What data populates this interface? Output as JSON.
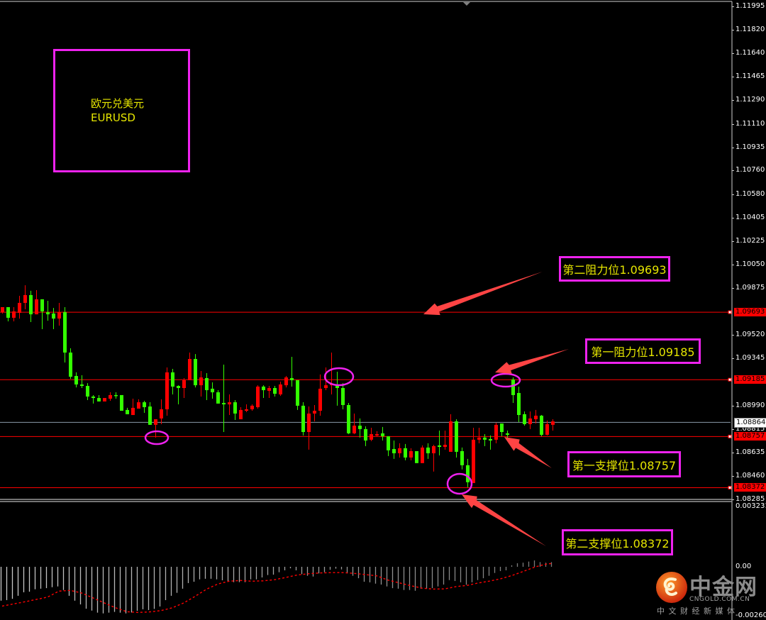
{
  "symbol_box": {
    "name_cn": "欧元兑美元",
    "name_en": "EURUSD"
  },
  "levels": [
    {
      "label": "第二阻力位1.09693",
      "price": 1.09693,
      "kind": "resistance-2"
    },
    {
      "label": "第一阻力位1.09185",
      "price": 1.09185,
      "kind": "resistance-1"
    },
    {
      "label": "第一支撑位1.08757",
      "price": 1.08757,
      "kind": "support-1"
    },
    {
      "label": "第二支撑位1.08372",
      "price": 1.08372,
      "kind": "support-2"
    }
  ],
  "price_axis": {
    "ticks": [
      "1.11995",
      "1.11820",
      "1.11640",
      "1.11465",
      "1.11290",
      "1.11110",
      "1.10935",
      "1.10760",
      "1.10580",
      "1.10405",
      "1.10225",
      "1.10050",
      "1.09875",
      "1.09520",
      "1.09345",
      "1.08990",
      "1.08815",
      "1.08635",
      "1.08460",
      "1.08285"
    ],
    "level_labels": [
      "1.09693",
      "1.09185",
      "1.08757",
      "1.08372"
    ],
    "current_price": "1.08864"
  },
  "macd_axis": {
    "max": "0.003231",
    "zero": "0.00",
    "min": "-0.002609"
  },
  "logo": {
    "name": "中金网",
    "domain": "CNGOLD.COM.CN",
    "tagline": "中 文 财 经 新 媒 体"
  },
  "colors": {
    "up": "#ff0000",
    "down": "#33ff00",
    "level_line": "#ff0000",
    "current_price_line": "#8a9aa8",
    "annotation": "#ee22ee",
    "annotation_text": "#e6e600",
    "arrow": "#ff4444",
    "macd_hist": "#b0b0b0",
    "macd_signal": "#ff0000"
  },
  "chart_data": {
    "type": "candlestick",
    "symbol": "EURUSD",
    "ylim": [
      1.08285,
      1.11995
    ],
    "up_color": "red",
    "down_color": "green",
    "ohlc": [
      [
        1.09693,
        1.09731,
        1.09683,
        1.09731
      ],
      [
        1.09731,
        1.09731,
        1.09624,
        1.09651
      ],
      [
        1.09651,
        1.09731,
        1.09624,
        1.09699
      ],
      [
        1.09688,
        1.09816,
        1.09645,
        1.09763
      ],
      [
        1.09763,
        1.09896,
        1.09715,
        1.09822
      ],
      [
        1.09822,
        1.09854,
        1.09619,
        1.09677
      ],
      [
        1.09677,
        1.09859,
        1.09677,
        1.0979
      ],
      [
        1.0979,
        1.0979,
        1.09565,
        1.09699
      ],
      [
        1.09693,
        1.09779,
        1.09629,
        1.09677
      ],
      [
        1.09683,
        1.09725,
        1.09565,
        1.09645
      ],
      [
        1.09645,
        1.09763,
        1.09592,
        1.09693
      ],
      [
        1.09693,
        1.09731,
        1.09314,
        1.09389
      ],
      [
        1.09389,
        1.09421,
        1.09191,
        1.09207
      ],
      [
        1.09213,
        1.0924,
        1.09127,
        1.09149
      ],
      [
        1.09149,
        1.09218,
        1.09122,
        1.09138
      ],
      [
        1.09138,
        1.09159,
        1.09031,
        1.09058
      ],
      [
        1.09058,
        1.09069,
        1.09005,
        1.09047
      ],
      [
        1.09047,
        1.09069,
        1.09021,
        1.09021
      ],
      [
        1.09021,
        1.09047,
        1.09021,
        1.09047
      ],
      [
        1.09042,
        1.0909,
        1.09026,
        1.09069
      ],
      [
        1.09069,
        1.0909,
        1.09042,
        1.09063
      ],
      [
        1.09069,
        1.09069,
        1.08951,
        1.08951
      ],
      [
        1.08957,
        1.08973,
        1.08925,
        1.08925
      ],
      [
        1.08919,
        1.09042,
        1.08919,
        1.08973
      ],
      [
        1.08967,
        1.09037,
        1.08967,
        1.09015
      ],
      [
        1.09015,
        1.09026,
        1.08935,
        1.08978
      ],
      [
        1.08983,
        1.09015,
        1.08845,
        1.08845
      ],
      [
        1.08845,
        1.08887,
        1.08749,
        1.08887
      ],
      [
        1.08893,
        1.09037,
        1.0885,
        1.08962
      ],
      [
        1.08962,
        1.09277,
        1.08914,
        1.0924
      ],
      [
        1.0924,
        1.09266,
        1.09074,
        1.09133
      ],
      [
        1.09138,
        1.09143,
        1.08999,
        1.09122
      ],
      [
        1.09122,
        1.09197,
        1.09047,
        1.09181
      ],
      [
        1.09181,
        1.09389,
        1.09181,
        1.09341
      ],
      [
        1.09341,
        1.09378,
        1.09127,
        1.09143
      ],
      [
        1.09143,
        1.0925,
        1.09058,
        1.09202
      ],
      [
        1.09197,
        1.09234,
        1.09031,
        1.09106
      ],
      [
        1.09117,
        1.09165,
        1.09042,
        1.0909
      ],
      [
        1.0909,
        1.09106,
        1.09005,
        1.09005
      ],
      [
        1.0901,
        1.09298,
        1.08791,
        1.08999
      ],
      [
        1.08999,
        1.09074,
        1.08919,
        1.09015
      ],
      [
        1.09015,
        1.09031,
        1.08882,
        1.0893
      ],
      [
        1.08887,
        1.08978,
        1.08887,
        1.08957
      ],
      [
        1.08951,
        1.08999,
        1.08941,
        1.08962
      ],
      [
        1.08962,
        1.08999,
        1.08951,
        1.08989
      ],
      [
        1.08978,
        1.09143,
        1.08967,
        1.09133
      ],
      [
        1.09133,
        1.09143,
        1.09047,
        1.09106
      ],
      [
        1.09101,
        1.09138,
        1.09047,
        1.09122
      ],
      [
        1.09122,
        1.09138,
        1.09058,
        1.09079
      ],
      [
        1.09074,
        1.0917,
        1.09063,
        1.09149
      ],
      [
        1.09143,
        1.09213,
        1.09127,
        1.09202
      ],
      [
        1.09197,
        1.09357,
        1.09133,
        1.09181
      ],
      [
        1.09181,
        1.09181,
        1.08957,
        1.08989
      ],
      [
        1.08989,
        1.09015,
        1.08765,
        1.08791
      ],
      [
        1.08791,
        1.08983,
        1.08658,
        1.0893
      ],
      [
        1.0893,
        1.08994,
        1.08871,
        1.08951
      ],
      [
        1.08951,
        1.09224,
        1.08914,
        1.09117
      ],
      [
        1.09122,
        1.09277,
        1.09106,
        1.09143
      ],
      [
        1.09143,
        1.09389,
        1.09074,
        1.09154
      ],
      [
        1.09149,
        1.09245,
        1.08989,
        1.09122
      ],
      [
        1.09122,
        1.09159,
        1.08962,
        1.08994
      ],
      [
        1.08994,
        1.0901,
        1.08775,
        1.08781
      ],
      [
        1.08781,
        1.0893,
        1.08775,
        1.08839
      ],
      [
        1.08839,
        1.08893,
        1.08749,
        1.08813
      ],
      [
        1.08813,
        1.08834,
        1.08685,
        1.08727
      ],
      [
        1.08733,
        1.08823,
        1.08722,
        1.08775
      ],
      [
        1.08765,
        1.08797,
        1.08759,
        1.08775
      ],
      [
        1.08781,
        1.08829,
        1.08727,
        1.08759
      ],
      [
        1.08759,
        1.08759,
        1.0861,
        1.08653
      ],
      [
        1.08663,
        1.08727,
        1.08589,
        1.08631
      ],
      [
        1.08631,
        1.08706,
        1.08599,
        1.08669
      ],
      [
        1.08669,
        1.08701,
        1.08578,
        1.08599
      ],
      [
        1.08599,
        1.08669,
        1.08578,
        1.08647
      ],
      [
        1.08647,
        1.08647,
        1.08557,
        1.08557
      ],
      [
        1.08557,
        1.0869,
        1.08557,
        1.08674
      ],
      [
        1.08674,
        1.08706,
        1.08589,
        1.08631
      ],
      [
        1.08631,
        1.08695,
        1.08493,
        1.08685
      ],
      [
        1.0869,
        1.08802,
        1.08615,
        1.08679
      ],
      [
        1.08679,
        1.08802,
        1.08658,
        1.08695
      ],
      [
        1.08642,
        1.08925,
        1.08642,
        1.08871
      ],
      [
        1.08871,
        1.08887,
        1.08599,
        1.08642
      ],
      [
        1.08647,
        1.08674,
        1.08509,
        1.08541
      ],
      [
        1.08541,
        1.08589,
        1.08375,
        1.08413
      ],
      [
        1.08407,
        1.08823,
        1.08407,
        1.08733
      ],
      [
        1.08733,
        1.08823,
        1.08706,
        1.08749
      ],
      [
        1.08749,
        1.08775,
        1.08685,
        1.08733
      ],
      [
        1.08738,
        1.08765,
        1.08658,
        1.08727
      ],
      [
        1.08733,
        1.08861,
        1.08706,
        1.08845
      ],
      [
        1.08855,
        1.08855,
        1.08759,
        1.08791
      ],
      [
        1.08781,
        1.08802,
        1.08733,
        1.0877
      ],
      [
        1.09186,
        1.09202,
        1.0901,
        1.09069
      ],
      [
        1.09085,
        1.09133,
        1.08866,
        1.08919
      ],
      [
        1.08925,
        1.08946,
        1.08839,
        1.0885
      ],
      [
        1.0885,
        1.08946,
        1.08813,
        1.08893
      ],
      [
        1.08887,
        1.08957,
        1.08855,
        1.08914
      ],
      [
        1.08914,
        1.08919,
        1.08759,
        1.0877
      ],
      [
        1.0877,
        1.08877,
        1.08765,
        1.0885
      ],
      [
        1.08845,
        1.08887,
        1.08802,
        1.08871
      ]
    ],
    "horizontal_lines": [
      1.09693,
      1.09185,
      1.08864,
      1.08757,
      1.08372
    ],
    "macd": {
      "ylim": [
        -0.002609,
        0.003231
      ],
      "histogram": [
        -0.00181,
        -0.00178,
        -0.00171,
        -0.00155,
        -0.00136,
        -0.00133,
        -0.0012,
        -0.00117,
        -0.00114,
        -0.00109,
        -0.00105,
        -0.00124,
        -0.00155,
        -0.00181,
        -0.00201,
        -0.00224,
        -0.00234,
        -0.00245,
        -0.00249,
        -0.00245,
        -0.00241,
        -0.00245,
        -0.00249,
        -0.00244,
        -0.00235,
        -0.00227,
        -0.00231,
        -0.00225,
        -0.00212,
        -0.00178,
        -0.00155,
        -0.00139,
        -0.00117,
        -0.00087,
        -0.0008,
        -0.00067,
        -0.00064,
        -0.00064,
        -0.00067,
        -0.00072,
        -0.00077,
        -0.00082,
        -0.00082,
        -0.00082,
        -0.00067,
        -0.00067,
        -0.00057,
        -0.00044,
        -0.00042,
        -0.00029,
        -0.00019,
        -8e-05,
        -0.00019,
        -0.00039,
        -0.00048,
        -0.00052,
        -0.00035,
        -0.00029,
        -0.00016,
        -0.0001,
        -0.00014,
        -0.00035,
        -0.00048,
        -0.00061,
        -0.0008,
        -0.00083,
        -0.0009,
        -0.00095,
        -0.00105,
        -0.00114,
        -0.00117,
        -0.00124,
        -0.00124,
        -0.00128,
        -0.00117,
        -0.00117,
        -0.00114,
        -0.00105,
        -0.00095,
        -0.00071,
        -0.00076,
        -0.00083,
        -0.00096,
        -0.00083,
        -0.00071,
        -0.00061,
        -0.00048,
        -0.00033,
        -0.00023,
        -0.00019,
        8e-05,
        0.00019,
        0.00022,
        0.00028,
        0.00034,
        0.00025,
        0.00022,
        0.00025
      ],
      "signal": [
        [
          0,
          -0.0021
        ],
        [
          4,
          -0.00187
        ],
        [
          8,
          -0.00162
        ],
        [
          10,
          -0.0013
        ],
        [
          12,
          -0.00126
        ],
        [
          14,
          -0.0014
        ],
        [
          16,
          -0.00166
        ],
        [
          18,
          -0.00193
        ],
        [
          20,
          -0.00219
        ],
        [
          22,
          -0.0024
        ],
        [
          24,
          -0.00244
        ],
        [
          26,
          -0.00241
        ],
        [
          28,
          -0.00234
        ],
        [
          30,
          -0.00219
        ],
        [
          32,
          -0.00193
        ],
        [
          34,
          -0.00158
        ],
        [
          36,
          -0.0012
        ],
        [
          38,
          -0.00092
        ],
        [
          40,
          -0.00077
        ],
        [
          42,
          -0.00073
        ],
        [
          44,
          -0.00077
        ],
        [
          46,
          -0.00075
        ],
        [
          48,
          -0.00069
        ],
        [
          50,
          -0.00057
        ],
        [
          52,
          -0.00044
        ],
        [
          54,
          -0.00037
        ],
        [
          56,
          -0.00033
        ],
        [
          58,
          -0.00031
        ],
        [
          60,
          -0.00031
        ],
        [
          62,
          -0.00035
        ],
        [
          66,
          -0.00048
        ],
        [
          68,
          -0.00071
        ],
        [
          70,
          -0.00086
        ],
        [
          72,
          -0.00101
        ],
        [
          74,
          -0.00114
        ],
        [
          76,
          -0.00119
        ],
        [
          78,
          -0.00118
        ],
        [
          80,
          -0.00106
        ],
        [
          82,
          -0.00099
        ],
        [
          84,
          -0.00086
        ],
        [
          86,
          -0.00076
        ],
        [
          88,
          -0.00063
        ],
        [
          90,
          -0.00045
        ],
        [
          92,
          -0.00023
        ],
        [
          94,
          0.0
        ],
        [
          96,
          0.00015
        ],
        [
          97,
          0.00018
        ]
      ]
    }
  }
}
